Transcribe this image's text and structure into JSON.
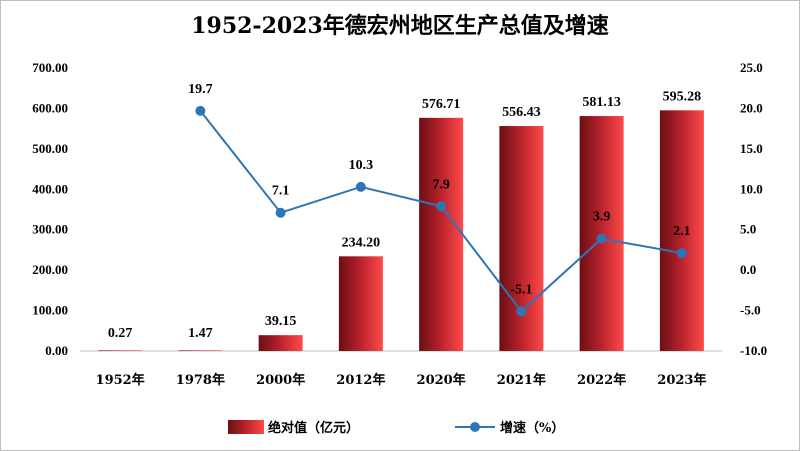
{
  "chart_data": {
    "type": "bar+line",
    "title": "1952-2023年德宏州地区生产总值及增速",
    "categories": [
      "1952年",
      "1978年",
      "2000年",
      "2012年",
      "2020年",
      "2021年",
      "2022年",
      "2023年"
    ],
    "series": [
      {
        "name": "绝对值（亿元）",
        "type": "bar",
        "axis": "left",
        "values": [
          0.27,
          1.47,
          39.15,
          234.2,
          576.71,
          556.43,
          581.13,
          595.28
        ],
        "labels": [
          "0.27",
          "1.47",
          "39.15",
          "234.20",
          "576.71",
          "556.43",
          "581.13",
          "595.28"
        ],
        "color": "#c0392b"
      },
      {
        "name": "增速（%）",
        "type": "line",
        "axis": "right",
        "values": [
          null,
          19.7,
          7.1,
          10.3,
          7.9,
          -5.1,
          3.9,
          2.1
        ],
        "labels": [
          "",
          "19.7",
          "7.1",
          "10.3",
          "7.9",
          "-5.1",
          "3.9",
          "2.1"
        ],
        "color": "#2e75b6"
      }
    ],
    "y_left": {
      "min": 0,
      "max": 700,
      "ticks": [
        0,
        100,
        200,
        300,
        400,
        500,
        600,
        700
      ],
      "tick_labels": [
        "0.00",
        "100.00",
        "200.00",
        "300.00",
        "400.00",
        "500.00",
        "600.00",
        "700.00"
      ]
    },
    "y_right": {
      "min": -10,
      "max": 25,
      "ticks": [
        -10,
        -5,
        0,
        5,
        10,
        15,
        20,
        25
      ],
      "tick_labels": [
        "-10.0",
        "-5.0",
        "0.0",
        "5.0",
        "10.0",
        "15.0",
        "20.0",
        "25.0"
      ]
    },
    "grid": false,
    "legend": "bottom"
  }
}
